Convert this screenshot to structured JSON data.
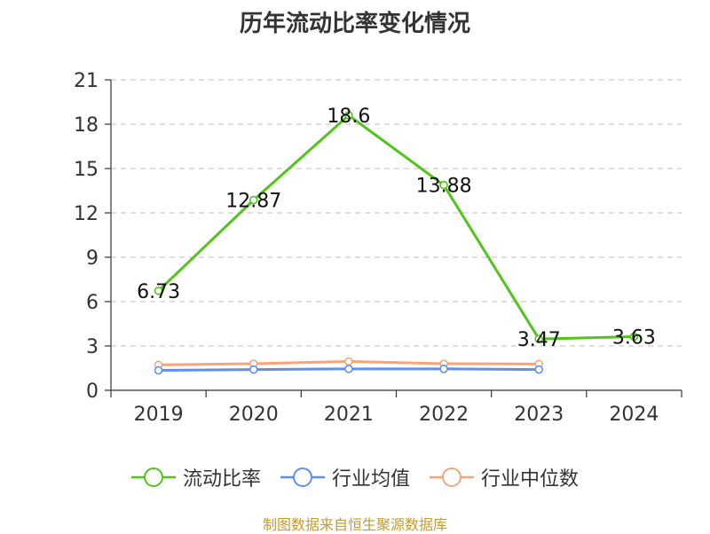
{
  "title": "历年流动比率变化情况",
  "source_note": "制图数据来自恒生聚源数据库",
  "colors": {
    "axis": "#333333",
    "grid": "#cccccc"
  },
  "chart_data": {
    "type": "line",
    "title": "历年流动比率变化情况",
    "xlabel": "",
    "ylabel": "",
    "categories": [
      "2019",
      "2020",
      "2021",
      "2022",
      "2023",
      "2024"
    ],
    "ylim": [
      0,
      21
    ],
    "yticks": [
      0,
      3,
      6,
      9,
      12,
      15,
      18,
      21
    ],
    "grid": true,
    "legend_position": "bottom",
    "series": [
      {
        "name": "流动比率",
        "color": "#52c41a",
        "values": [
          6.73,
          12.87,
          18.6,
          13.88,
          3.47,
          3.63
        ],
        "labels": [
          "6.73",
          "12.87",
          "18.6",
          "13.88",
          "3.47",
          "3.63"
        ],
        "show_labels": true
      },
      {
        "name": "行业均值",
        "color": "#5b8ff9",
        "values": [
          1.35,
          1.4,
          1.45,
          1.45,
          1.4,
          null
        ],
        "show_labels": false
      },
      {
        "name": "行业中位数",
        "color": "#f6a57a",
        "values": [
          1.72,
          1.8,
          1.95,
          1.8,
          1.78,
          null
        ],
        "show_labels": false
      }
    ]
  }
}
